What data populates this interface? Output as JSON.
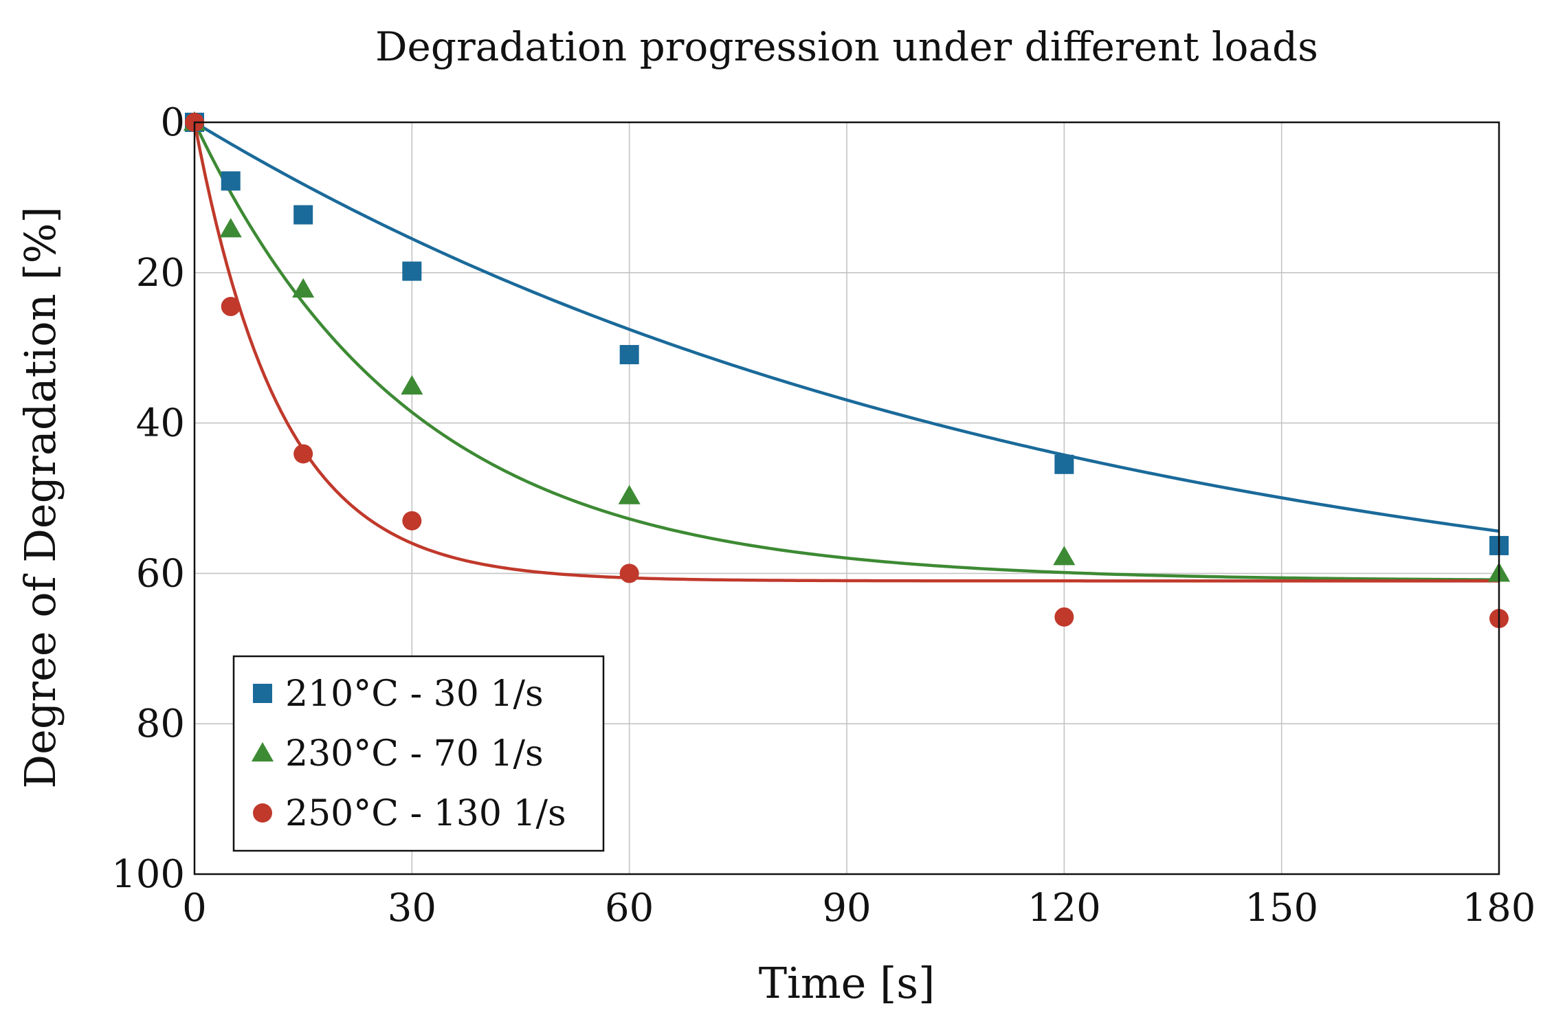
{
  "chart_data": {
    "type": "line",
    "title": "Degradation progression under different loads",
    "xlabel": "Time [s]",
    "ylabel": "Degree of Degradation [%]",
    "xlim": [
      0,
      180
    ],
    "ylim": [
      100,
      0
    ],
    "y_axis_reversed": true,
    "xticks": [
      0,
      30,
      60,
      90,
      120,
      150,
      180
    ],
    "yticks": [
      0,
      20,
      40,
      60,
      80,
      100
    ],
    "grid": true,
    "legend_position": "bottom-left",
    "series": [
      {
        "name": "210°C - 30 1/s",
        "color": "#1a6a9a",
        "marker": "square",
        "x": [
          0,
          5,
          15,
          30,
          60,
          120,
          180
        ],
        "y": [
          0,
          7.8,
          12.3,
          19.8,
          30.9,
          45.5,
          56.3
        ],
        "fit_curve": {
          "asymptote": 70,
          "tau": 120
        }
      },
      {
        "name": "230°C - 70 1/s",
        "color": "#3d8a34",
        "marker": "triangle",
        "x": [
          0,
          5,
          15,
          30,
          60,
          120,
          180
        ],
        "y": [
          0,
          14.2,
          22.2,
          35.1,
          49.7,
          57.8,
          60.0
        ],
        "fit_curve": {
          "asymptote": 61,
          "tau": 30
        }
      },
      {
        "name": "250°C - 130 1/s",
        "color": "#c0392b",
        "marker": "circle",
        "x": [
          0,
          5,
          15,
          30,
          60,
          120,
          180
        ],
        "y": [
          0,
          24.5,
          44.1,
          53.0,
          60.0,
          65.8,
          66.0
        ],
        "fit_curve": {
          "asymptote": 61,
          "tau": 12
        }
      }
    ]
  }
}
